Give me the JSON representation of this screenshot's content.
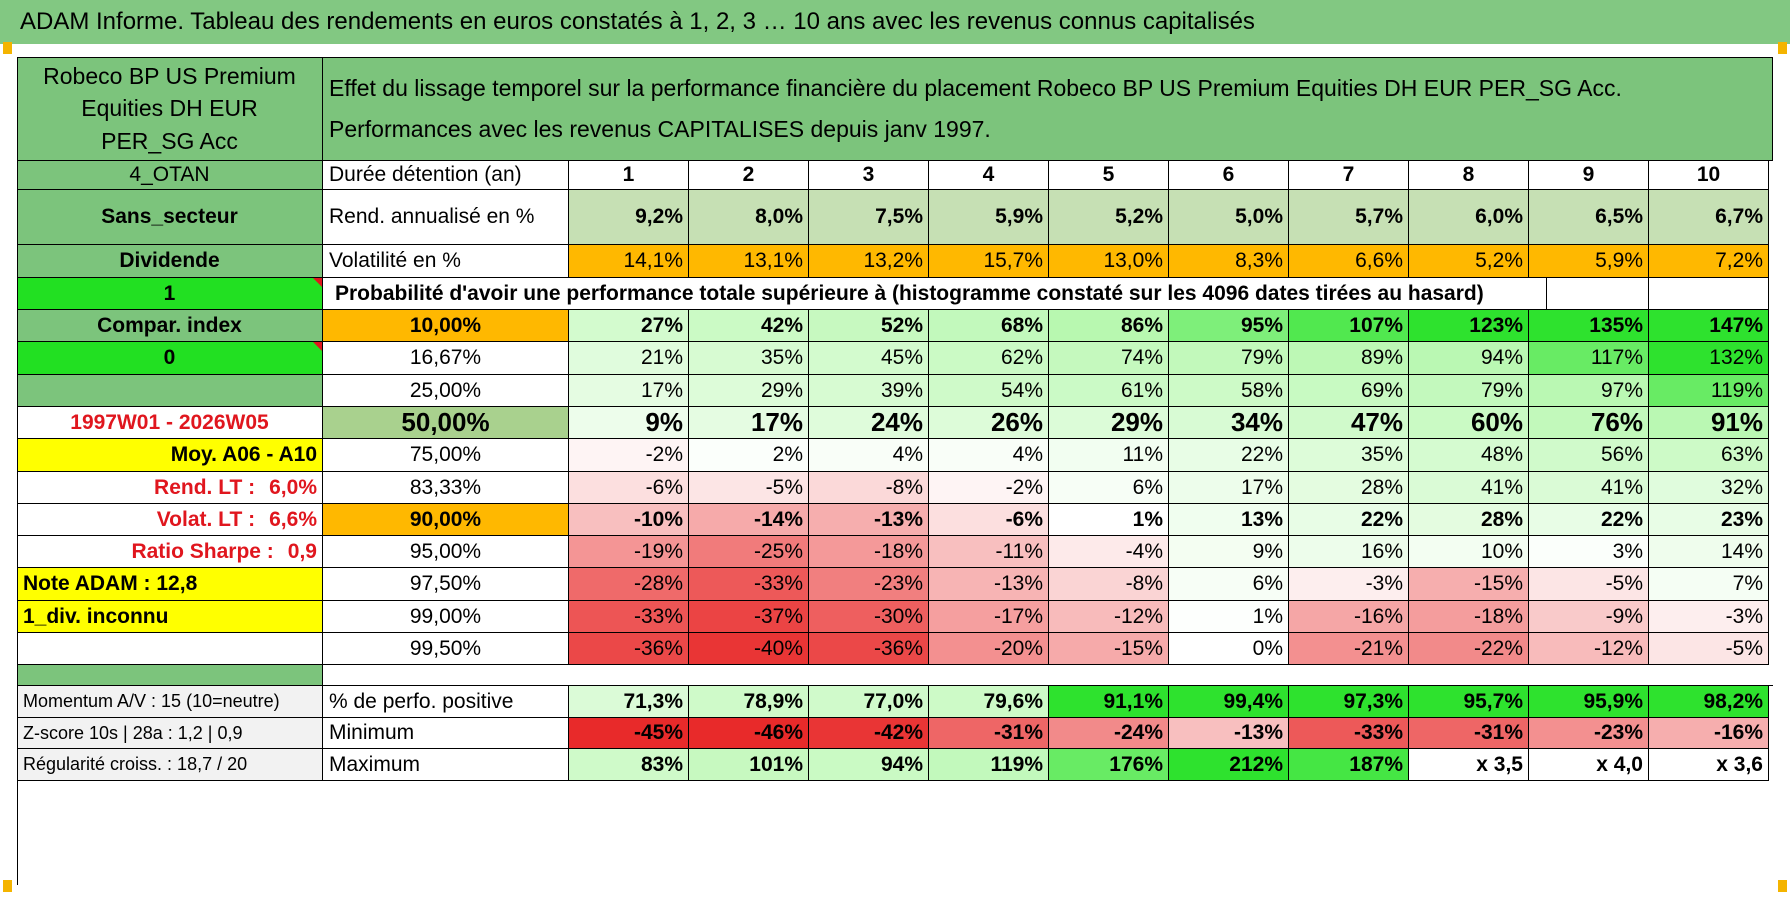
{
  "title": "ADAM Informe. Tableau des rendements en euros constatés à 1, 2, 3 … 10 ans avec les revenus connus capitalisés",
  "fund_name": "Robeco BP US Premium Equities DH EUR PER_SG Acc",
  "description_line1": "Effet du lissage temporel sur la performance financière du placement Robeco BP US Premium Equities DH EUR PER_SG Acc.",
  "description_line2": "Performances avec les revenus CAPITALISES depuis janv 1997.",
  "left_labels": {
    "otan": "4_OTAN",
    "sector": "Sans_secteur",
    "dividend": "Dividende",
    "one": "1",
    "compar_index": "Compar. index",
    "zero": "0",
    "period": "1997W01 - 2026W05",
    "moy": "Moy. A06 - A10",
    "rend_lt_label": "Rend. LT :",
    "rend_lt_value": "6,0%",
    "volat_lt_label": "Volat. LT :",
    "volat_lt_value": "6,6%",
    "sharpe_label": "Ratio Sharpe :",
    "sharpe_value": "0,9",
    "note": "Note ADAM : 12,8",
    "div_inconnu": "1_div. inconnu",
    "momentum": "Momentum A/V : 15 (10=neutre)",
    "zscore": "Z-score 10s | 28a : 1,2 | 0,9",
    "regularite": "Régularité croiss. : 18,7 / 20"
  },
  "header": {
    "label": "Durée détention (an)",
    "years": [
      "1",
      "2",
      "3",
      "4",
      "5",
      "6",
      "7",
      "8",
      "9",
      "10"
    ]
  },
  "rend_row": {
    "label": "Rend. annualisé en %",
    "values": [
      "9,2%",
      "8,0%",
      "7,5%",
      "5,9%",
      "5,2%",
      "5,0%",
      "5,7%",
      "6,0%",
      "6,5%",
      "6,7%"
    ]
  },
  "vol_row": {
    "label": "Volatilité en %",
    "values": [
      "14,1%",
      "13,1%",
      "13,2%",
      "15,7%",
      "13,0%",
      "8,3%",
      "6,6%",
      "5,2%",
      "5,9%",
      "7,2%"
    ]
  },
  "proba_title": "Probabilité d'avoir une performance totale supérieure à (histogramme constaté sur les 4096 dates tirées au hasard)",
  "prob_rows": [
    {
      "p": "10,00%",
      "values": [
        "27%",
        "42%",
        "52%",
        "68%",
        "86%",
        "95%",
        "107%",
        "123%",
        "135%",
        "147%"
      ]
    },
    {
      "p": "16,67%",
      "values": [
        "21%",
        "35%",
        "45%",
        "62%",
        "74%",
        "79%",
        "89%",
        "94%",
        "117%",
        "132%"
      ]
    },
    {
      "p": "25,00%",
      "values": [
        "17%",
        "29%",
        "39%",
        "54%",
        "61%",
        "58%",
        "69%",
        "79%",
        "97%",
        "119%"
      ]
    },
    {
      "p": "50,00%",
      "values": [
        "9%",
        "17%",
        "24%",
        "26%",
        "29%",
        "34%",
        "47%",
        "60%",
        "76%",
        "91%"
      ]
    },
    {
      "p": "75,00%",
      "values": [
        "-2%",
        "2%",
        "4%",
        "4%",
        "11%",
        "22%",
        "35%",
        "48%",
        "56%",
        "63%"
      ]
    },
    {
      "p": "83,33%",
      "values": [
        "-6%",
        "-5%",
        "-8%",
        "-2%",
        "6%",
        "17%",
        "28%",
        "41%",
        "41%",
        "32%"
      ]
    },
    {
      "p": "90,00%",
      "values": [
        "-10%",
        "-14%",
        "-13%",
        "-6%",
        "1%",
        "13%",
        "22%",
        "28%",
        "22%",
        "23%"
      ]
    },
    {
      "p": "95,00%",
      "values": [
        "-19%",
        "-25%",
        "-18%",
        "-11%",
        "-4%",
        "9%",
        "16%",
        "10%",
        "3%",
        "14%"
      ]
    },
    {
      "p": "97,50%",
      "values": [
        "-28%",
        "-33%",
        "-23%",
        "-13%",
        "-8%",
        "6%",
        "-3%",
        "-15%",
        "-5%",
        "7%"
      ]
    },
    {
      "p": "99,00%",
      "values": [
        "-33%",
        "-37%",
        "-30%",
        "-17%",
        "-12%",
        "1%",
        "-16%",
        "-18%",
        "-9%",
        "-3%"
      ]
    },
    {
      "p": "99,50%",
      "values": [
        "-36%",
        "-40%",
        "-36%",
        "-20%",
        "-15%",
        "0%",
        "-21%",
        "-22%",
        "-12%",
        "-5%"
      ]
    }
  ],
  "stat_rows": [
    {
      "label": "% de perfo. positive",
      "values": [
        "71,3%",
        "78,9%",
        "77,0%",
        "79,6%",
        "91,1%",
        "99,4%",
        "97,3%",
        "95,7%",
        "95,9%",
        "98,2%"
      ]
    },
    {
      "label": "Minimum",
      "values": [
        "-45%",
        "-46%",
        "-42%",
        "-31%",
        "-24%",
        "-13%",
        "-33%",
        "-31%",
        "-23%",
        "-16%"
      ]
    },
    {
      "label": "Maximum",
      "values": [
        "83%",
        "101%",
        "94%",
        "119%",
        "176%",
        "212%",
        "187%",
        "x 3,5",
        "x 4,0",
        "x 3,6"
      ]
    }
  ],
  "colors": {
    "title_green": "#82c882",
    "label_green": "#7cc47c",
    "bright_green": "#22e022",
    "yellow": "#ffff00",
    "orange": "#ffb800",
    "light_green_cell": "#c6e0b4",
    "median_green": "#a9d18e",
    "red_text": "#e0161e"
  },
  "fill_levels": {
    "prob_rows": [
      [
        0.55,
        0.65,
        0.7,
        0.75,
        0.88,
        0.93,
        0.97,
        1.0,
        1.0,
        1.0
      ],
      [
        0.38,
        0.5,
        0.55,
        0.65,
        0.72,
        0.76,
        0.82,
        0.85,
        0.95,
        1.0
      ],
      [
        0.32,
        0.42,
        0.5,
        0.6,
        0.64,
        0.62,
        0.68,
        0.74,
        0.85,
        0.95
      ],
      [
        0.22,
        0.32,
        0.4,
        0.42,
        0.44,
        0.48,
        0.58,
        0.66,
        0.76,
        0.85
      ],
      [
        -0.05,
        0.05,
        0.08,
        0.08,
        0.16,
        0.28,
        0.42,
        0.52,
        0.58,
        0.62
      ],
      [
        -0.15,
        -0.12,
        -0.18,
        -0.05,
        0.1,
        0.22,
        0.34,
        0.46,
        0.46,
        0.38
      ],
      [
        -0.3,
        -0.4,
        -0.38,
        -0.15,
        0.0,
        0.18,
        0.28,
        0.34,
        0.28,
        0.28
      ],
      [
        -0.5,
        -0.62,
        -0.48,
        -0.3,
        -0.1,
        0.14,
        0.22,
        0.15,
        0.05,
        0.2
      ],
      [
        -0.7,
        -0.78,
        -0.6,
        -0.35,
        -0.2,
        0.1,
        -0.08,
        -0.38,
        -0.12,
        0.12
      ],
      [
        -0.8,
        -0.88,
        -0.75,
        -0.45,
        -0.32,
        0.02,
        -0.42,
        -0.46,
        -0.25,
        -0.08
      ],
      [
        -0.86,
        -0.95,
        -0.86,
        -0.52,
        -0.4,
        0.0,
        -0.52,
        -0.55,
        -0.32,
        -0.12
      ]
    ],
    "stat_rows": [
      [
        0.45,
        0.6,
        0.58,
        0.62,
        1.0,
        1.0,
        1.0,
        1.0,
        1.0,
        1.0
      ],
      [
        -1.0,
        -1.0,
        -0.95,
        -0.72,
        -0.55,
        -0.3,
        -0.78,
        -0.72,
        -0.52,
        -0.38
      ],
      [
        0.6,
        0.7,
        0.66,
        0.75,
        0.95,
        1.0,
        0.98,
        0.0,
        0.0,
        0.0
      ]
    ]
  }
}
